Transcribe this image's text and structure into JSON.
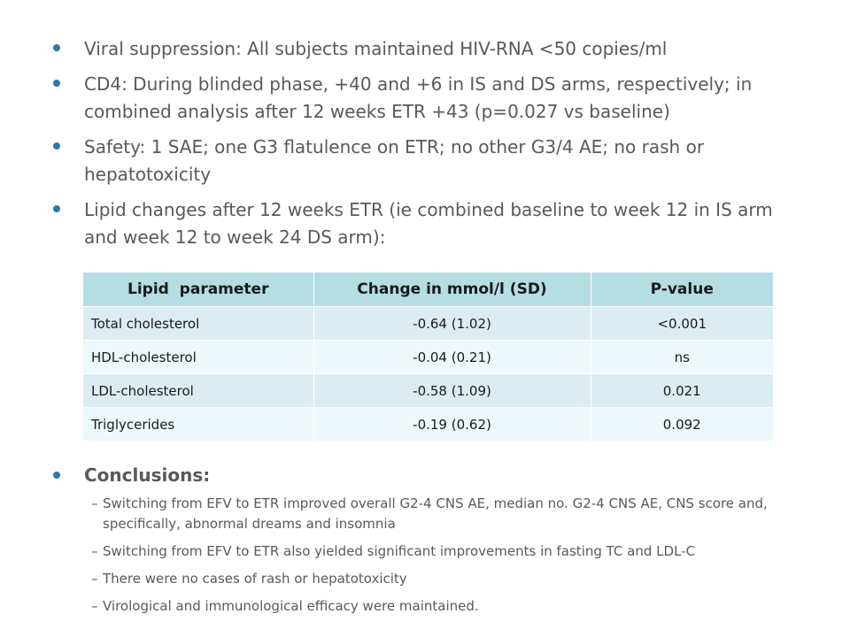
{
  "bullets": [
    "Viral suppression: All subjects maintained HIV-RNA <50 copies/ml",
    "CD4: During blinded phase, +40 and +6 in IS and DS arms, respectively; in combined analysis after 12 weeks ETR +43 (p=0.027 vs baseline)",
    "Safety: 1 SAE; one G3 flatulence on ETR; no other G3/4 AE; no rash or hepatotoxicity",
    "Lipid changes after 12 weeks ETR (ie combined baseline to week 12 in IS arm and week 12 to week 24 DS arm):"
  ],
  "table": {
    "headers": [
      "Lipid  parameter",
      "Change in mmol/l (SD)",
      "P-value"
    ],
    "rows": [
      [
        "Total cholesterol",
        "-0.64 (1.02)",
        "<0.001"
      ],
      [
        "HDL-cholesterol",
        "-0.04 (0.21)",
        "ns"
      ],
      [
        "LDL-cholesterol",
        "-0.58 (1.09)",
        "0.021"
      ],
      [
        "Triglycerides",
        "-0.19 (0.62)",
        "0.092"
      ]
    ]
  },
  "conclusions": {
    "heading": "Conclusions:",
    "dash": "–",
    "items": [
      "Switching from EFV to ETR improved overall G2-4 CNS AE, median no. G2-4 CNS AE, CNS score and, specifically, abnormal dreams and insomnia",
      "Switching from EFV to ETR also yielded significant improvements in fasting TC and LDL-C",
      "There were no cases of rash or hepatotoxicity",
      "Virological and immunological efficacy were maintained."
    ]
  },
  "colors": {
    "bullet": "#2b79a8",
    "header_fill": "#b4dde4",
    "row_odd": "#dcedf2",
    "row_even": "#eef7f9",
    "text": "#595959"
  }
}
